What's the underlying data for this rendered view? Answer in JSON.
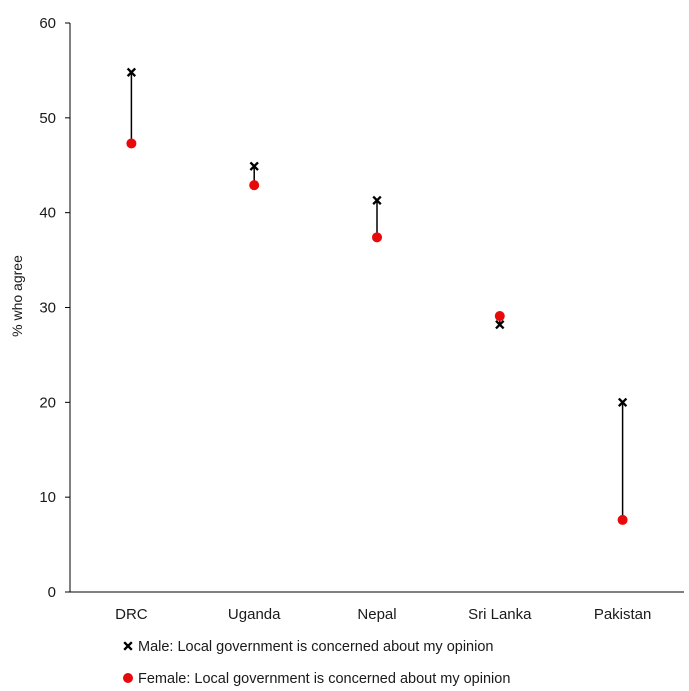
{
  "chart_data": {
    "type": "scatter",
    "subtype": "dumbbell",
    "categories": [
      "DRC",
      "Uganda",
      "Nepal",
      "Sri Lanka",
      "Pakistan"
    ],
    "series": [
      {
        "name": "Male: Local government is concerned about my opinion",
        "marker": "x",
        "color": "#000000",
        "values": [
          54.8,
          44.9,
          41.3,
          28.2,
          20.0
        ]
      },
      {
        "name": "Female: Local government is concerned about my opinion",
        "marker": "circle",
        "color": "#e8090b",
        "values": [
          47.3,
          42.9,
          37.4,
          29.1,
          7.6
        ]
      }
    ],
    "ylabel": "% who agree",
    "xlabel": "",
    "ylim": [
      0,
      60
    ],
    "yticks": [
      0,
      10,
      20,
      30,
      40,
      50,
      60
    ],
    "grid": false,
    "connector_color": "#000000",
    "legend_position": "bottom"
  }
}
